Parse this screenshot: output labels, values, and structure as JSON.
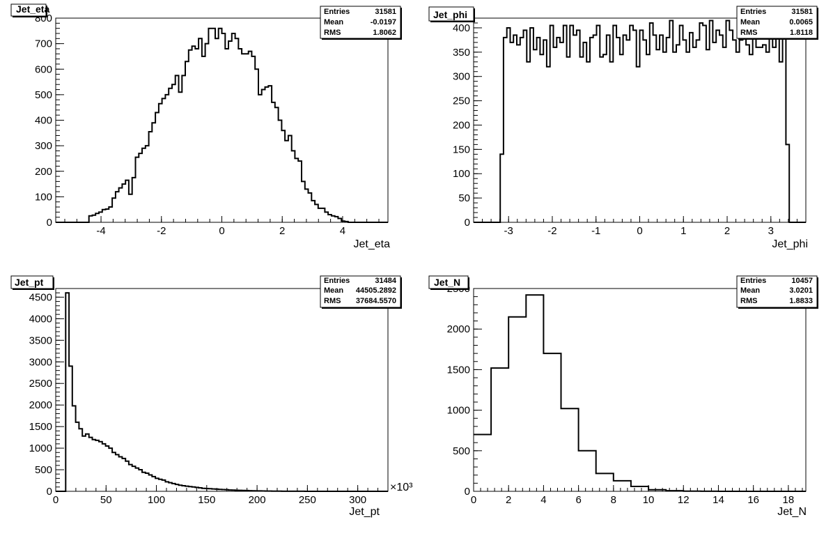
{
  "chart_data": [
    {
      "type": "bar",
      "title": "Jet_eta",
      "xlabel": "Jet_eta",
      "ylabel": "",
      "stats": {
        "Entries": "31581",
        "Mean": "-0.0197",
        "RMS": "1.8062"
      },
      "xlim": [
        -5.5,
        5.5
      ],
      "ylim": [
        0,
        800
      ],
      "xticks": [
        -4,
        -2,
        0,
        2,
        4
      ],
      "xtick_labels": [
        "-4",
        "-2",
        "0",
        "2",
        "4"
      ],
      "yticks": [
        0,
        100,
        200,
        300,
        400,
        500,
        600,
        700,
        800
      ],
      "ytick_labels": [
        "0",
        "100",
        "200",
        "300",
        "400",
        "500",
        "600",
        "700",
        "800"
      ],
      "bin_edges_start": -5.5,
      "bin_width": 0.11,
      "values": [
        0,
        0,
        0,
        0,
        0,
        0,
        0,
        0,
        0,
        0,
        25,
        28,
        35,
        40,
        50,
        52,
        60,
        95,
        120,
        135,
        150,
        165,
        110,
        175,
        255,
        270,
        290,
        300,
        355,
        390,
        430,
        465,
        485,
        500,
        525,
        540,
        575,
        510,
        575,
        630,
        675,
        690,
        680,
        720,
        650,
        700,
        760,
        760,
        720,
        760,
        740,
        680,
        710,
        740,
        720,
        680,
        660,
        660,
        670,
        650,
        600,
        500,
        520,
        530,
        535,
        470,
        450,
        400,
        360,
        320,
        340,
        280,
        250,
        240,
        160,
        130,
        115,
        85,
        70,
        55,
        55,
        40,
        30,
        25,
        22,
        15,
        5,
        3,
        0,
        0,
        0,
        0,
        0,
        0,
        0,
        0,
        0,
        0,
        0,
        0
      ]
    },
    {
      "type": "bar",
      "title": "Jet_phi",
      "xlabel": "Jet_phi",
      "ylabel": "",
      "stats": {
        "Entries": "31581",
        "Mean": "0.0065",
        "RMS": "1.8118"
      },
      "xlim": [
        -3.8,
        3.8
      ],
      "ylim": [
        0,
        420
      ],
      "xticks": [
        -3,
        -2,
        -1,
        0,
        1,
        2,
        3
      ],
      "xtick_labels": [
        "-3",
        "-2",
        "-1",
        "0",
        "1",
        "2",
        "3"
      ],
      "yticks": [
        0,
        50,
        100,
        150,
        200,
        250,
        300,
        350,
        400
      ],
      "ytick_labels": [
        "0",
        "50",
        "100",
        "150",
        "200",
        "250",
        "300",
        "350",
        "400"
      ],
      "bin_edges_start": -3.8,
      "bin_width": 0.076,
      "values": [
        0,
        0,
        0,
        0,
        0,
        0,
        0,
        0,
        140,
        380,
        400,
        370,
        385,
        365,
        380,
        395,
        330,
        400,
        355,
        380,
        345,
        375,
        320,
        405,
        360,
        380,
        370,
        405,
        340,
        405,
        385,
        395,
        340,
        370,
        330,
        380,
        385,
        405,
        340,
        345,
        385,
        330,
        405,
        380,
        345,
        385,
        375,
        405,
        395,
        320,
        395,
        375,
        345,
        410,
        385,
        355,
        385,
        350,
        380,
        415,
        350,
        365,
        405,
        375,
        350,
        390,
        360,
        375,
        410,
        405,
        355,
        415,
        370,
        395,
        385,
        360,
        415,
        395,
        375,
        350,
        375,
        415,
        365,
        345,
        405,
        360,
        360,
        365,
        350,
        420,
        360,
        410,
        330,
        405,
        160,
        0,
        0,
        0,
        0,
        0
      ]
    },
    {
      "type": "bar",
      "title": "Jet_pt",
      "xlabel": "Jet_pt",
      "x_exponent": "×10³",
      "ylabel": "",
      "stats": {
        "Entries": "31484",
        "Mean": "44505.2892",
        "RMS": "37684.5570"
      },
      "xlim": [
        0,
        330
      ],
      "ylim": [
        0,
        4700
      ],
      "xticks": [
        0,
        50,
        100,
        150,
        200,
        250,
        300
      ],
      "xtick_labels": [
        "0",
        "50",
        "100",
        "150",
        "200",
        "250",
        "300"
      ],
      "yticks": [
        0,
        500,
        1000,
        1500,
        2000,
        2500,
        3000,
        3500,
        4000,
        4500
      ],
      "ytick_labels": [
        "0",
        "500",
        "1000",
        "1500",
        "2000",
        "2500",
        "3000",
        "3500",
        "4000",
        "4500"
      ],
      "bin_edges_start": 0,
      "bin_width": 3.3,
      "values": [
        0,
        0,
        0,
        4600,
        2900,
        1980,
        1600,
        1450,
        1280,
        1330,
        1250,
        1200,
        1180,
        1150,
        1100,
        1050,
        1000,
        900,
        850,
        800,
        760,
        700,
        620,
        580,
        540,
        500,
        440,
        420,
        380,
        340,
        300,
        280,
        260,
        220,
        200,
        180,
        160,
        140,
        130,
        120,
        110,
        100,
        90,
        80,
        70,
        65,
        60,
        55,
        50,
        45,
        40,
        35,
        30,
        28,
        25,
        22,
        20,
        18,
        15,
        12,
        10,
        9,
        8,
        7,
        6,
        5,
        4,
        3,
        2,
        2,
        1,
        1,
        1,
        1,
        1,
        0,
        0,
        0,
        0,
        0,
        0,
        0,
        0,
        0,
        0,
        0,
        0,
        0,
        0,
        0,
        0,
        0,
        0,
        0,
        0,
        0,
        0,
        0,
        0,
        0
      ]
    },
    {
      "type": "bar",
      "title": "Jet_N",
      "xlabel": "Jet_N",
      "ylabel": "",
      "stats": {
        "Entries": "10457",
        "Mean": "3.0201",
        "RMS": "1.8833"
      },
      "xlim": [
        0,
        19
      ],
      "ylim": [
        0,
        2500
      ],
      "xticks": [
        0,
        2,
        4,
        6,
        8,
        10,
        12,
        14,
        16,
        18
      ],
      "xtick_labels": [
        "0",
        "2",
        "4",
        "6",
        "8",
        "10",
        "12",
        "14",
        "16",
        "18"
      ],
      "yticks": [
        0,
        500,
        1000,
        1500,
        2000,
        2500
      ],
      "ytick_labels": [
        "0",
        "500",
        "1000",
        "1500",
        "2000",
        "2500"
      ],
      "bin_edges_start": 0,
      "bin_width": 1,
      "values": [
        700,
        1520,
        2150,
        2420,
        1700,
        1020,
        500,
        220,
        130,
        60,
        20,
        8,
        3,
        1,
        0,
        0,
        0,
        0,
        0
      ]
    }
  ]
}
